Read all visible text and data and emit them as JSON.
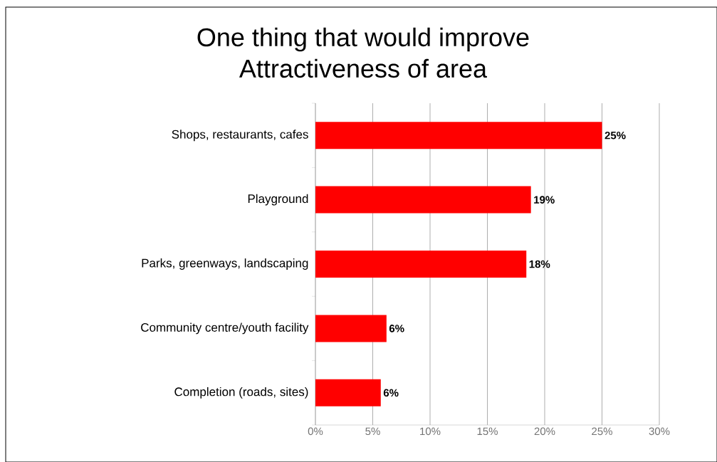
{
  "chart_data": {
    "type": "bar",
    "orientation": "horizontal",
    "title": "One thing that would improve\nAttractiveness of area",
    "categories": [
      "Shops, restaurants, cafes",
      "Playground",
      "Parks, greenways, landscaping",
      "Community centre/youth facility",
      "Completion (roads, sites)"
    ],
    "values": [
      25,
      18.8,
      18.4,
      6.2,
      5.7
    ],
    "value_labels": [
      "25%",
      "19%",
      "18%",
      "6%",
      "6%"
    ],
    "color": "#ff0000",
    "xlim": [
      0,
      30
    ],
    "xticks": [
      {
        "value": 0,
        "label": "0%"
      },
      {
        "value": 5,
        "label": "5%"
      },
      {
        "value": 10,
        "label": "10%"
      },
      {
        "value": 15,
        "label": "15%"
      },
      {
        "value": 20,
        "label": "20%"
      },
      {
        "value": 25,
        "label": "25%"
      },
      {
        "value": 30,
        "label": "30%"
      }
    ],
    "grid": "x"
  }
}
